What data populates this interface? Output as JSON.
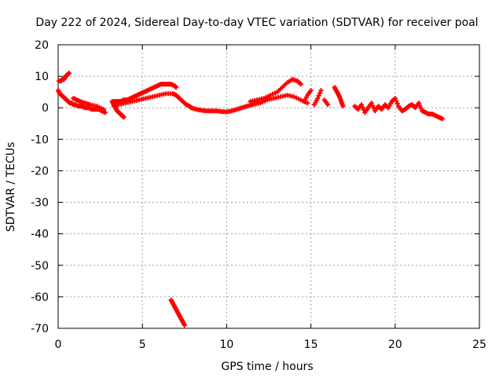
{
  "chart_data": {
    "type": "scatter",
    "title": "Day 222 of 2024, Sidereal Day-to-day VTEC variation (SDTVAR) for receiver poal",
    "xlabel": "GPS time / hours",
    "ylabel": "SDTVAR / TECUs",
    "xlim": [
      0,
      25
    ],
    "ylim": [
      -70,
      20
    ],
    "xticks": [
      "0",
      "5",
      "10",
      "15",
      "20",
      "25"
    ],
    "yticks": [
      "20",
      "10",
      "0",
      "-10",
      "-20",
      "-30",
      "-40",
      "-50",
      "-60",
      "-70"
    ],
    "grid": true,
    "marker": "+",
    "color": "#ff0000",
    "series": [
      {
        "name": "SDTVAR",
        "x": [
          0.0,
          0.1,
          0.2,
          0.3,
          0.4,
          0.5,
          0.6,
          0.7,
          0.8,
          0.9,
          1.0,
          1.2,
          1.4,
          1.6,
          1.8,
          2.0,
          2.2,
          2.4,
          2.6,
          2.8,
          0.05,
          0.15,
          0.25,
          0.35,
          0.45,
          0.55,
          0.65,
          0.9,
          1.1,
          1.3,
          1.6,
          1.9,
          2.3,
          2.7,
          3.2,
          3.3,
          3.4,
          3.5,
          3.6,
          3.7,
          3.8,
          3.9,
          3.3,
          3.5,
          3.7,
          3.9,
          4.1,
          4.3,
          4.5,
          4.7,
          4.9,
          5.1,
          5.3,
          5.5,
          5.7,
          5.9,
          6.1,
          6.3,
          6.5,
          6.7,
          6.9,
          7.0,
          3.3,
          3.6,
          4.0,
          4.4,
          4.8,
          5.2,
          5.6,
          6.0,
          6.4,
          6.8,
          7.0,
          7.2,
          7.4,
          7.6,
          7.8,
          7.9,
          8.2,
          8.5,
          8.8,
          9.1,
          9.4,
          9.7,
          10.0,
          10.3,
          10.6,
          10.9,
          11.2,
          11.5,
          11.8,
          11.4,
          11.8,
          12.2,
          12.6,
          13.0,
          13.3,
          13.6,
          13.9,
          14.2,
          14.4,
          11.6,
          12.0,
          12.4,
          12.8,
          13.2,
          13.6,
          14.0,
          14.4,
          14.8,
          14.6,
          14.8,
          15.0,
          15.2,
          15.4,
          15.6,
          15.8,
          16.0,
          16.4,
          16.5,
          16.6,
          16.7,
          16.8,
          16.9,
          17.6,
          17.8,
          18.0,
          18.2,
          18.4,
          18.6,
          18.8,
          19.0,
          19.2,
          19.4,
          19.6,
          19.8,
          20.0,
          20.2,
          20.4,
          20.6,
          20.8,
          21.0,
          21.2,
          21.4,
          21.6,
          21.8,
          22.0,
          22.2,
          22.4,
          22.6,
          22.8,
          6.7,
          6.8,
          6.9,
          7.0,
          7.1,
          7.2,
          7.3,
          7.4,
          7.5
        ],
        "y": [
          5.5,
          4.5,
          4.0,
          3.5,
          3.0,
          2.5,
          2.0,
          1.5,
          1.5,
          1.0,
          1.0,
          0.5,
          0.5,
          0.0,
          0.0,
          -0.5,
          -0.5,
          -0.5,
          -1.0,
          -1.5,
          8.5,
          8.5,
          9.0,
          9.0,
          10.0,
          10.5,
          11.0,
          3.0,
          2.5,
          2.0,
          1.5,
          1.0,
          0.5,
          -0.5,
          2.0,
          1.0,
          0.0,
          -1.0,
          -1.5,
          -2.0,
          -2.5,
          -3.0,
          2.0,
          2.0,
          2.0,
          2.5,
          2.5,
          3.0,
          3.5,
          4.0,
          4.5,
          5.0,
          5.5,
          6.0,
          6.5,
          7.0,
          7.5,
          7.5,
          7.5,
          7.5,
          7.0,
          6.5,
          0.5,
          1.0,
          1.5,
          2.0,
          2.5,
          3.0,
          3.5,
          4.0,
          4.5,
          4.5,
          4.0,
          3.0,
          2.0,
          1.0,
          0.5,
          0.0,
          -0.5,
          -0.8,
          -1.0,
          -1.0,
          -1.0,
          -1.2,
          -1.3,
          -1.0,
          -0.5,
          0.0,
          0.5,
          1.0,
          2.0,
          2.0,
          2.5,
          3.0,
          4.0,
          5.0,
          6.5,
          8.0,
          9.0,
          8.5,
          7.5,
          1.0,
          1.5,
          2.5,
          3.0,
          3.5,
          4.0,
          3.5,
          2.5,
          1.5,
          2.0,
          4.0,
          5.5,
          1.0,
          3.0,
          5.5,
          2.5,
          1.0,
          6.5,
          5.5,
          4.5,
          3.5,
          2.0,
          0.5,
          0.5,
          -0.5,
          1.0,
          -1.5,
          0.0,
          1.5,
          -1.0,
          0.5,
          -0.5,
          1.0,
          0.0,
          2.0,
          3.0,
          0.5,
          -1.0,
          -0.5,
          0.5,
          1.0,
          0.0,
          1.5,
          -1.0,
          -1.5,
          -2.0,
          -2.0,
          -2.5,
          -3.0,
          -3.5,
          -61.0,
          -62.0,
          -63.0,
          -64.0,
          -65.0,
          -66.0,
          -67.0,
          -68.0,
          -69.0
        ]
      }
    ]
  }
}
